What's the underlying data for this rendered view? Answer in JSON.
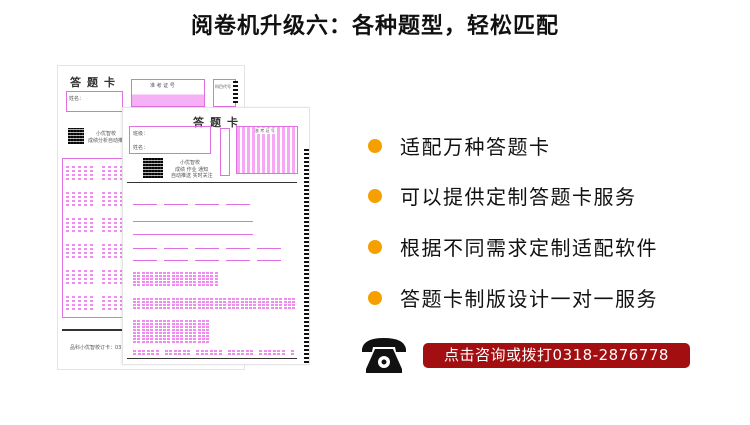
{
  "title": "阅卷机升级六：各种题型，轻松匹配",
  "sheets": {
    "back": {
      "title": "答题卡",
      "name_label": "姓名：",
      "exam_id_label": "准 考 证 号",
      "subject_label": "科目代号",
      "brand": "小优智校",
      "brand_sub": "成绩分析自动推送",
      "footer": "品科小优智校订卡：0318-287"
    },
    "front": {
      "title": "答题卡",
      "class_label": "班级：",
      "name_label": "姓名：",
      "exam_id_label": "准 考 证 号",
      "brand": "小优智校",
      "brand_sub1": "成绩  作业  通知",
      "brand_sub2": "自动推送  实时关注"
    }
  },
  "features": [
    "适配万种答题卡",
    "可以提供定制答题卡服务",
    "根据不同需求定制适配软件",
    "答题卡制版设计一对一服务"
  ],
  "contact": {
    "icon": "telephone-icon",
    "label": "点击咨询或拨打0318-2876778"
  },
  "colors": {
    "bullet": "#f5a000",
    "cta": "#a30f10",
    "sheet_accent": "#e070e0"
  }
}
